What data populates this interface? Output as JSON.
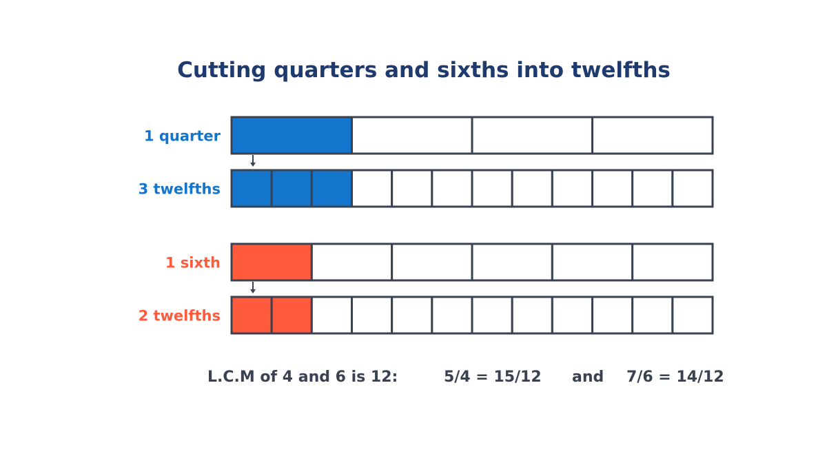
{
  "title": "Cutting quarters and sixths into twelfths",
  "colors": {
    "title": "#1f3a6e",
    "outline": "#3a4252",
    "quarter": "#1475cc",
    "sixth": "#ff5a3c",
    "text_dark": "#3a4252"
  },
  "bars": [
    {
      "label": "1 quarter",
      "divisions": 4,
      "shaded": 1,
      "color_key": "quarter"
    },
    {
      "label": "3 twelfths",
      "divisions": 12,
      "shaded": 3,
      "color_key": "quarter"
    },
    {
      "label": "1 sixth",
      "divisions": 6,
      "shaded": 1,
      "color_key": "sixth"
    },
    {
      "label": "2 twelfths",
      "divisions": 12,
      "shaded": 2,
      "color_key": "sixth"
    }
  ],
  "footer": {
    "lcm": "L.C.M of 4 and 6 is 12:",
    "eq1": "5/4 = 15/12",
    "and": "and",
    "eq2": "7/6 = 14/12"
  }
}
